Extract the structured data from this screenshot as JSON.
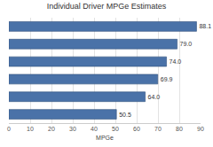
{
  "chart_data": {
    "type": "bar",
    "title": "Individual Driver MPGe Estimates",
    "orientation": "horizontal",
    "categories": [
      null,
      null,
      null,
      null,
      null,
      null
    ],
    "values": [
      88.1,
      79.0,
      74.0,
      69.9,
      64.0,
      50.5
    ],
    "value_labels": [
      "88.1",
      "79.0",
      "74.0",
      "69.9",
      "64.0",
      "50.5"
    ],
    "data_labels": true,
    "color": "#4a72a8",
    "x_label": "MPGe",
    "xlim": [
      0,
      90
    ],
    "xticks": [
      0,
      10,
      20,
      30,
      40,
      50,
      60,
      70,
      80,
      90
    ],
    "grid": true,
    "tick_labels": "x"
  }
}
